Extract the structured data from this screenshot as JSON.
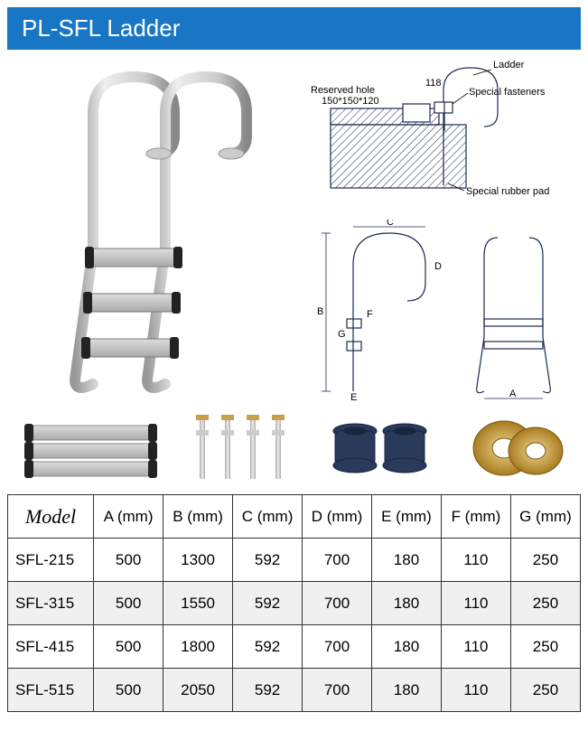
{
  "title": "PL-SFL Ladder",
  "colors": {
    "title_bar_bg": "#1976c5",
    "title_bar_text": "#ffffff",
    "border": "#333333",
    "alt_row": "#f0f0f0",
    "steel": "#c8c8c8",
    "steel_light": "#e2e2e2",
    "steel_dark": "#888888",
    "navy": "#2a3a5a",
    "brass": "#c9a04a",
    "line": "#1a2a50"
  },
  "diagram_labels": {
    "ladder": "Ladder",
    "reserved_hole": "Reserved hole",
    "reserved_dim": "150*150*120",
    "special_fasteners": "Special fasteners",
    "special_rubber_pad": "Special rubber pad",
    "dim_118": "118",
    "A": "A",
    "B": "B",
    "C": "C",
    "D": "D",
    "E": "E",
    "F": "F",
    "G": "G"
  },
  "table": {
    "columns": [
      "Model",
      "A (mm)",
      "B (mm)",
      "C (mm)",
      "D (mm)",
      "E (mm)",
      "F (mm)",
      "G (mm)"
    ],
    "col_widths_pct": [
      15,
      12.14,
      12.14,
      12.14,
      12.14,
      12.14,
      12.14,
      12.14
    ],
    "rows": [
      [
        "SFL-215",
        "500",
        "1300",
        "592",
        "700",
        "180",
        "110",
        "250"
      ],
      [
        "SFL-315",
        "500",
        "1550",
        "592",
        "700",
        "180",
        "110",
        "250"
      ],
      [
        "SFL-415",
        "500",
        "1800",
        "592",
        "700",
        "180",
        "110",
        "250"
      ],
      [
        "SFL-515",
        "500",
        "2050",
        "592",
        "700",
        "180",
        "110",
        "250"
      ]
    ]
  },
  "parts": {
    "items": [
      "steps",
      "bolts",
      "rubber-plugs",
      "flanges"
    ]
  }
}
